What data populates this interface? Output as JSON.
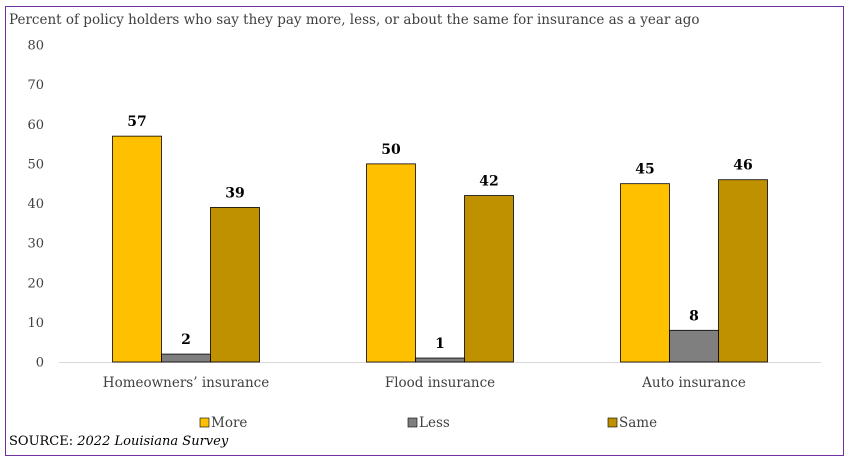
{
  "chart_data": {
    "type": "bar",
    "subtitle": "Percent of policy holders who say they pay more, less, or about the same for insurance as a year ago",
    "categories": [
      "Homeowners’ insurance",
      "Flood insurance",
      "Auto insurance"
    ],
    "series": [
      {
        "name": "More",
        "values": [
          57,
          50,
          45
        ],
        "color": "#ffc000"
      },
      {
        "name": "Less",
        "values": [
          2,
          1,
          8
        ],
        "color": "#7f7f7f"
      },
      {
        "name": "Same",
        "values": [
          39,
          42,
          46
        ],
        "color": "#bf9000"
      }
    ],
    "ylim": [
      0,
      80
    ],
    "yticks": [
      0,
      10,
      20,
      30,
      40,
      50,
      60,
      70,
      80
    ],
    "grid": false,
    "legend_position": "bottom"
  },
  "source": {
    "prefix": "SOURCE: ",
    "title": "2022 Louisiana Survey"
  }
}
